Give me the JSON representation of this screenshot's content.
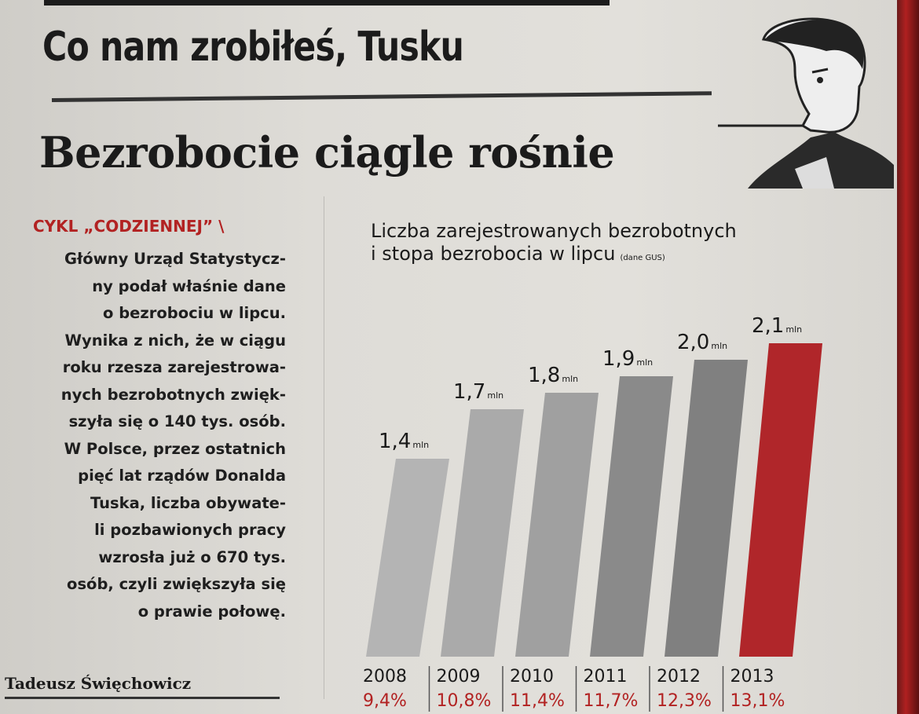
{
  "article": {
    "headline": "Co nam zrobiłeś, Tusku",
    "subheadline": "Bezrobocie ciągle rośnie",
    "kicker": "CYKL „CODZIENNEJ” \\",
    "body_lines": [
      "Główny Urząd Statystycz-",
      "ny podał właśnie dane",
      "o bezrobociu w lipcu.",
      "Wynika z nich, że w ciągu",
      "roku rzesza zarejestrowa-",
      "nych bezrobotnych zwięk-",
      "szyła się o 140 tys. osób.",
      "W Polsce, przez ostatnich",
      "pięć lat rządów Donalda",
      "Tuska, liczba obywate-",
      "li pozbawionych pracy",
      "wzrosła już o 670 tys.",
      "osób, czyli zwiększyła się",
      "o prawie połowę."
    ],
    "author": "Tadeusz Święchowicz"
  },
  "colors": {
    "gray_bar": "#9a9a9a",
    "dark_bar": "#6e6e6e",
    "red_bar": "#b0262a",
    "rate_text": "#b22222"
  },
  "chart_data": {
    "type": "bar",
    "title_line1": "Liczba zarejestrowanych bezrobotnych",
    "title_line2": "i stopa bezrobocia w lipcu",
    "source": "(dane GUS)",
    "categories": [
      "2008",
      "2009",
      "2010",
      "2011",
      "2012",
      "2013"
    ],
    "series": [
      {
        "values": [
          1.4,
          1.7,
          1.8,
          1.9,
          2.0,
          2.1
        ]
      }
    ],
    "value_labels": [
      "1,4",
      "1,7",
      "1,8",
      "1,9",
      "2,0",
      "2,1"
    ],
    "unit": "mln",
    "rates": [
      "9,4%",
      "10,8%",
      "11,4%",
      "11,7%",
      "12,3%",
      "13,1%"
    ],
    "highlight_index": 5,
    "grid": false,
    "legend": "none"
  }
}
